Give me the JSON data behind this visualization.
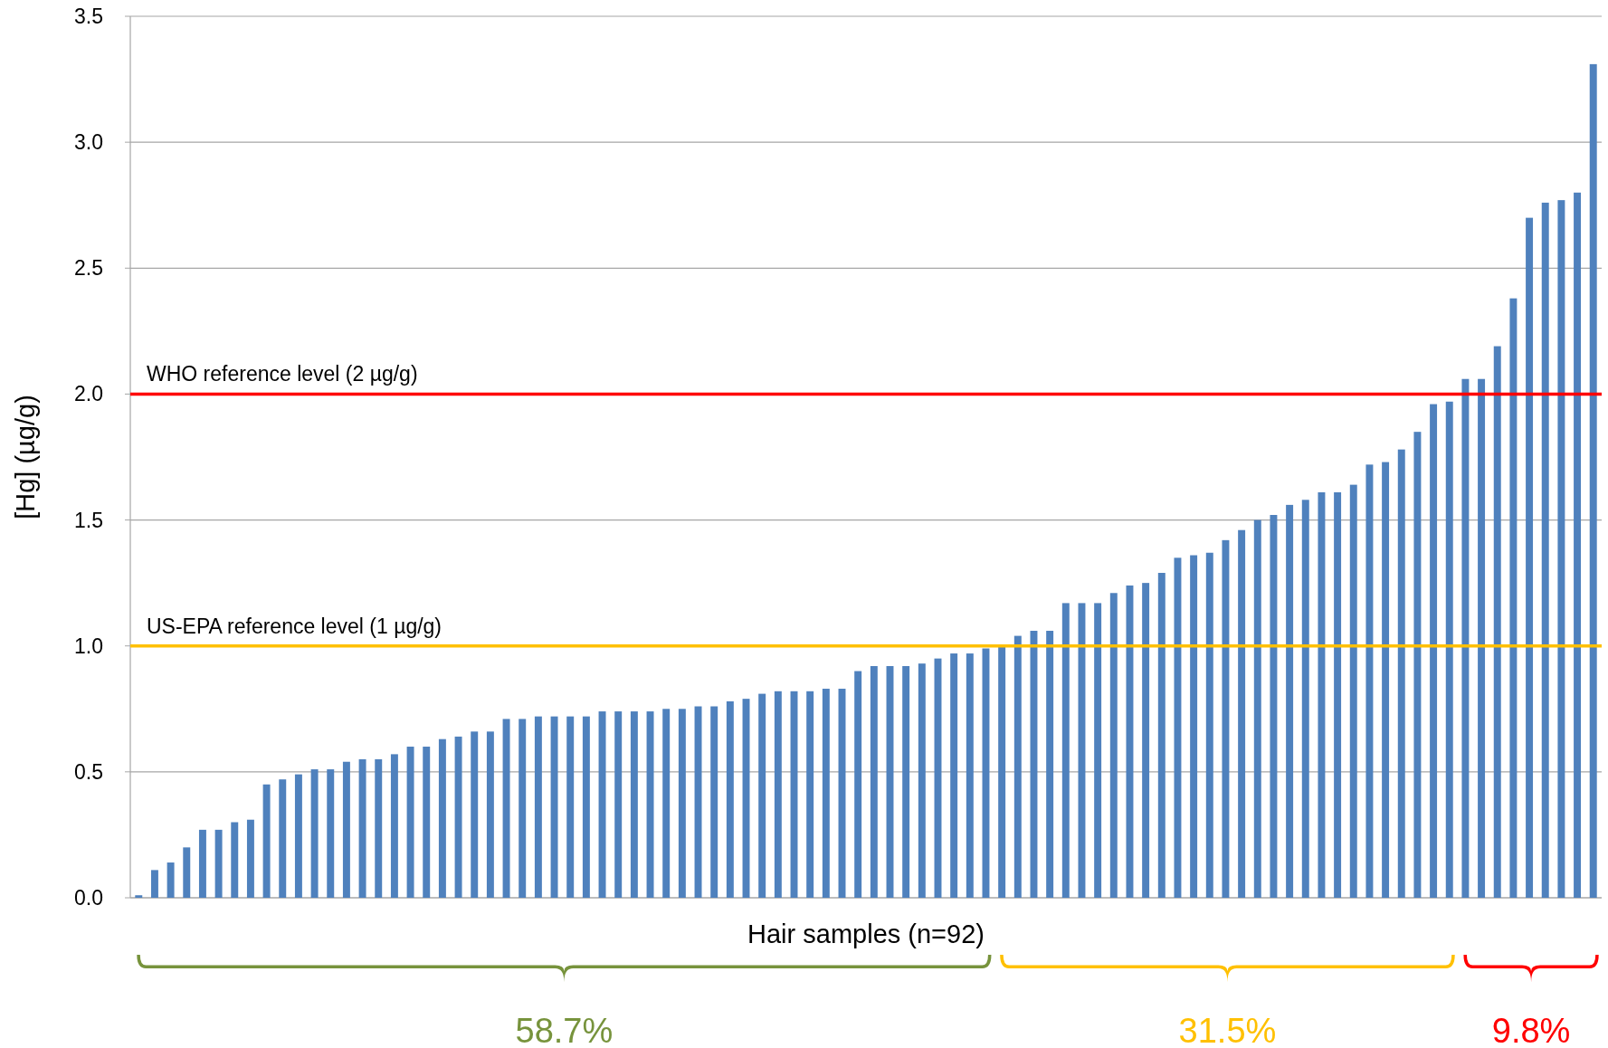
{
  "chart_data": {
    "type": "bar",
    "xlabel": "Hair samples (n=92)",
    "ylabel": "[Hg] (µg/g)",
    "categories": [
      null,
      null,
      null,
      null,
      null,
      null,
      null,
      null,
      null,
      null,
      null,
      null,
      null,
      null,
      null,
      null,
      null,
      null,
      null,
      null,
      null,
      null,
      null,
      null,
      null,
      null,
      null,
      null,
      null,
      null,
      null,
      null,
      null,
      null,
      null,
      null,
      null,
      null,
      null,
      null,
      null,
      null,
      null,
      null,
      null,
      null,
      null,
      null,
      null,
      null,
      null,
      null,
      null,
      null,
      null,
      null,
      null,
      null,
      null,
      null,
      null,
      null,
      null,
      null,
      null,
      null,
      null,
      null,
      null,
      null,
      null,
      null,
      null,
      null,
      null,
      null,
      null,
      null,
      null,
      null,
      null,
      null,
      null,
      null,
      null,
      null,
      null,
      null,
      null,
      null,
      null,
      null
    ],
    "values": [
      0.01,
      0.11,
      0.14,
      0.2,
      0.27,
      0.27,
      0.3,
      0.31,
      0.45,
      0.47,
      0.49,
      0.51,
      0.51,
      0.54,
      0.55,
      0.55,
      0.57,
      0.6,
      0.6,
      0.63,
      0.64,
      0.66,
      0.66,
      0.71,
      0.71,
      0.72,
      0.72,
      0.72,
      0.72,
      0.74,
      0.74,
      0.74,
      0.74,
      0.75,
      0.75,
      0.76,
      0.76,
      0.78,
      0.79,
      0.81,
      0.82,
      0.82,
      0.82,
      0.83,
      0.83,
      0.9,
      0.92,
      0.92,
      0.92,
      0.93,
      0.95,
      0.97,
      0.97,
      0.99,
      1.0,
      1.04,
      1.06,
      1.06,
      1.17,
      1.17,
      1.17,
      1.21,
      1.24,
      1.25,
      1.29,
      1.35,
      1.36,
      1.37,
      1.42,
      1.46,
      1.5,
      1.52,
      1.56,
      1.58,
      1.61,
      1.61,
      1.64,
      1.72,
      1.73,
      1.78,
      1.85,
      1.96,
      1.97,
      2.06,
      2.06,
      2.19,
      2.38,
      2.7,
      2.76,
      2.77,
      2.8,
      3.31
    ],
    "color": "#4f81bd",
    "ylim": [
      0,
      3.5
    ],
    "yticks": [
      {
        "value": 0,
        "label": "0.0"
      },
      {
        "value": 0.5,
        "label": "0.5"
      },
      {
        "value": 1,
        "label": "1.0"
      },
      {
        "value": 1.5,
        "label": "1.5"
      },
      {
        "value": 2,
        "label": "2.0"
      },
      {
        "value": 2.5,
        "label": "2.5"
      },
      {
        "value": 3,
        "label": "3.0"
      },
      {
        "value": 3.5,
        "label": "3.5"
      }
    ],
    "grid": "y",
    "ref_lines": [
      {
        "axis": "y",
        "value": 2,
        "label": "WHO reference level (2 µg/g)",
        "color": "#ff0000"
      },
      {
        "axis": "y",
        "value": 1,
        "label": "US-EPA reference level (1 µg/g)",
        "color": "#ffc000"
      }
    ],
    "annotations": [
      "58.7%",
      "31.5%",
      "9.8%"
    ]
  }
}
